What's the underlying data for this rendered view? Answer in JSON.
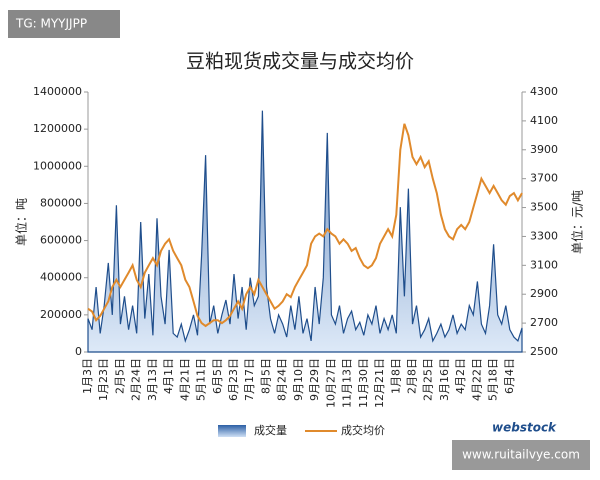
{
  "chart_data": {
    "type": "area-line",
    "title": "豆粕现货成交量与成交均价",
    "y_label": "单位：吨",
    "y2_label": "单位：元/吨",
    "categories": [
      "1月3日",
      null,
      null,
      null,
      "1月23日",
      null,
      null,
      null,
      "2月5日",
      null,
      null,
      null,
      "2月24日",
      null,
      null,
      null,
      "3月13日",
      null,
      null,
      null,
      "4月1日",
      null,
      null,
      null,
      "4月21日",
      null,
      null,
      null,
      "5月11日",
      null,
      null,
      null,
      "6月5日",
      null,
      null,
      null,
      "6月23日",
      null,
      null,
      null,
      "7月17日",
      null,
      null,
      null,
      "8月5日",
      null,
      null,
      null,
      "8月24日",
      null,
      null,
      null,
      "9月10日",
      null,
      null,
      null,
      "9月29日",
      null,
      null,
      null,
      "10月27日",
      null,
      null,
      null,
      "11月13日",
      null,
      null,
      null,
      "11月30日",
      null,
      null,
      null,
      "12月21日",
      null,
      null,
      null,
      "1月8日",
      null,
      null,
      null,
      "2月8日",
      null,
      null,
      null,
      "2月25日",
      null,
      null,
      null,
      "3月16日",
      null,
      null,
      null,
      "4月2日",
      null,
      null,
      null,
      "4月22日",
      null,
      null,
      null,
      "5月18日",
      null,
      null,
      null,
      "6月4日",
      null,
      null,
      null
    ],
    "series": [
      {
        "name": "成交量",
        "color": "#1f4e8c",
        "fill": "#8fb4e3",
        "axis": "y",
        "values": [
          180000,
          120000,
          350000,
          100000,
          250000,
          480000,
          200000,
          790000,
          150000,
          300000,
          120000,
          250000,
          100000,
          700000,
          180000,
          420000,
          90000,
          720000,
          300000,
          150000,
          550000,
          100000,
          80000,
          150000,
          60000,
          120000,
          200000,
          90000,
          520000,
          1060000,
          150000,
          250000,
          100000,
          200000,
          280000,
          150000,
          420000,
          180000,
          350000,
          120000,
          400000,
          250000,
          300000,
          1300000,
          350000,
          180000,
          100000,
          200000,
          150000,
          80000,
          250000,
          120000,
          300000,
          100000,
          180000,
          60000,
          350000,
          150000,
          400000,
          1180000,
          200000,
          150000,
          250000,
          100000,
          180000,
          220000,
          120000,
          160000,
          90000,
          200000,
          150000,
          250000,
          100000,
          180000,
          120000,
          200000,
          100000,
          780000,
          300000,
          880000,
          150000,
          250000,
          80000,
          120000,
          180000,
          60000,
          100000,
          150000,
          80000,
          120000,
          200000,
          100000,
          150000,
          120000,
          250000,
          200000,
          380000,
          150000,
          100000,
          250000,
          580000,
          200000,
          150000,
          250000,
          120000,
          80000,
          60000,
          130000
        ]
      },
      {
        "name": "成交均价",
        "color": "#e08a2c",
        "axis": "y2",
        "values": [
          2800,
          2780,
          2720,
          2750,
          2800,
          2850,
          2950,
          3000,
          2950,
          3000,
          3050,
          3100,
          3000,
          2950,
          3050,
          3100,
          3150,
          3100,
          3200,
          3250,
          3280,
          3200,
          3150,
          3100,
          3000,
          2950,
          2850,
          2750,
          2700,
          2680,
          2700,
          2720,
          2720,
          2700,
          2720,
          2750,
          2800,
          2850,
          2800,
          2900,
          2950,
          2900,
          3000,
          2950,
          2900,
          2850,
          2800,
          2820,
          2850,
          2900,
          2880,
          2950,
          3000,
          3050,
          3100,
          3250,
          3300,
          3320,
          3300,
          3350,
          3320,
          3300,
          3250,
          3280,
          3250,
          3200,
          3220,
          3150,
          3100,
          3080,
          3100,
          3150,
          3250,
          3300,
          3350,
          3300,
          3450,
          3900,
          4080,
          4000,
          3850,
          3800,
          3850,
          3780,
          3820,
          3700,
          3600,
          3450,
          3350,
          3300,
          3280,
          3350,
          3380,
          3350,
          3400,
          3500,
          3600,
          3700,
          3650,
          3600,
          3650,
          3600,
          3550,
          3520,
          3580,
          3600,
          3550,
          3600
        ]
      }
    ],
    "ylim": [
      0,
      1400000
    ],
    "yticks": [
      0,
      200000,
      400000,
      600000,
      800000,
      1000000,
      1200000,
      1400000
    ],
    "y2lim": [
      2500,
      4300
    ],
    "y2ticks": [
      2500,
      2700,
      2900,
      3100,
      3300,
      3500,
      3700,
      3900,
      4100,
      4300
    ],
    "legend": "bottom"
  },
  "watermarks": [
    "TG: MYYJJPP",
    "www.ruitailvye.com"
  ],
  "logo": "webstock"
}
